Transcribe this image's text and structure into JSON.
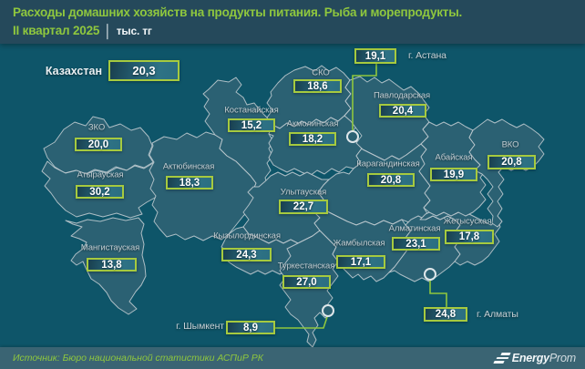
{
  "header": {
    "title_line1": "Расходы домашних хозяйств на продукты питания. Рыба и морепродукты.",
    "period": "II квартал 2025",
    "divider": "│",
    "unit": "тыс. тг"
  },
  "national": {
    "label": "Казахстан",
    "value": "20,3"
  },
  "map": {
    "regions": [
      {
        "id": "astana",
        "label": "г. Астана",
        "value": "19,1"
      },
      {
        "id": "sko",
        "label": "СКО",
        "value": "18,6"
      },
      {
        "id": "pavlodar",
        "label": "Павлодарская",
        "value": "20,4"
      },
      {
        "id": "kostanay",
        "label": "Костанайская",
        "value": "15,2"
      },
      {
        "id": "akmola",
        "label": "Акмолинская",
        "value": "18,2"
      },
      {
        "id": "zko",
        "label": "ЗКО",
        "value": "20,0"
      },
      {
        "id": "vko",
        "label": "ВКО",
        "value": "20,8"
      },
      {
        "id": "abay",
        "label": "Абайская",
        "value": "19,9"
      },
      {
        "id": "karaganda",
        "label": "Карагандинская",
        "value": "20,8"
      },
      {
        "id": "atyrau",
        "label": "Атырауская",
        "value": "30,2"
      },
      {
        "id": "aktobe",
        "label": "Актюбинская",
        "value": "18,3"
      },
      {
        "id": "ulytau",
        "label": "Улытауская",
        "value": "22,7"
      },
      {
        "id": "zhetysu",
        "label": "Жетысуская",
        "value": "17,8"
      },
      {
        "id": "mangystau",
        "label": "Мангистауская",
        "value": "13,8"
      },
      {
        "id": "kyzylorda",
        "label": "Кызылординская",
        "value": "24,3"
      },
      {
        "id": "almaty_region",
        "label": "Алматинская",
        "value": "23,1"
      },
      {
        "id": "zhambyl",
        "label": "Жамбылская",
        "value": "17,1"
      },
      {
        "id": "turkestan",
        "label": "Туркестанская",
        "value": "27,0"
      },
      {
        "id": "shymkent",
        "label": "г. Шымкент",
        "value": "8,9"
      },
      {
        "id": "almaty_city",
        "label": "г. Алматы",
        "value": "24,8"
      }
    ]
  },
  "chart_data": {
    "type": "table",
    "title": "Расходы домашних хозяйств на продукты питания. Рыба и морепродукты. II квартал 2025",
    "unit": "тыс. тг",
    "categories": [
      "Казахстан",
      "г. Астана",
      "СКО",
      "Павлодарская",
      "Костанайская",
      "Акмолинская",
      "ЗКО",
      "ВКО",
      "Абайская",
      "Карагандинская",
      "Атырауская",
      "Актюбинская",
      "Улытауская",
      "Жетысуская",
      "Мангистауская",
      "Кызылординская",
      "Алматинская",
      "Жамбылская",
      "Туркестанская",
      "г. Шымкент",
      "г. Алматы"
    ],
    "values": [
      20.3,
      19.1,
      18.6,
      20.4,
      15.2,
      18.2,
      20.0,
      20.8,
      19.9,
      20.8,
      30.2,
      18.3,
      22.7,
      17.8,
      13.8,
      24.3,
      23.1,
      17.1,
      27.0,
      8.9,
      24.8
    ]
  },
  "footer": {
    "source": "Источник: Бюро национальной статистики АСПиР РК",
    "brand_bold": "Energy",
    "brand_light": "Prom"
  },
  "colors": {
    "accent_green": "#8fc73e",
    "badge_border": "#a6ca3f",
    "header_bg": "#25495b",
    "map_bg": "#0e5569",
    "land": "#2b6173",
    "region_border": "#c7d0d5",
    "footer_bg": "#3a6473"
  }
}
